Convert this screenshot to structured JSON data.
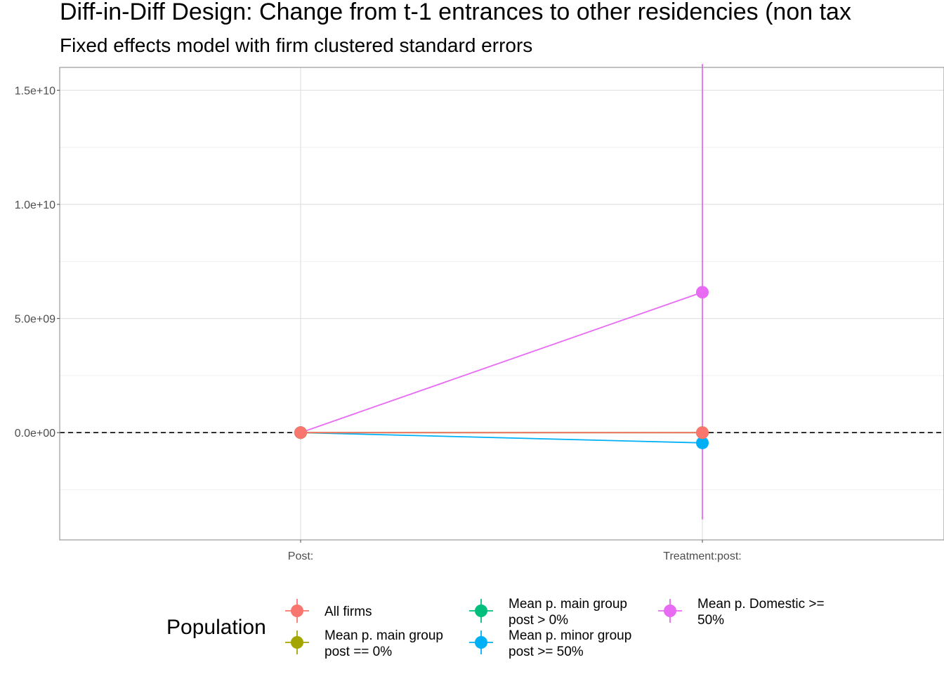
{
  "chart_data": {
    "type": "scatter",
    "title": "Diff-in-Diff Design: Change from t-1 entrances to other residencies (non tax",
    "subtitle": "Fixed effects model with firm clustered standard errors",
    "xlabel": "",
    "ylabel": "",
    "categories": [
      "Post:",
      "Treatment:post:"
    ],
    "ylim": [
      -4700000000.0,
      16000000000.0
    ],
    "yticks": [
      0,
      5000000000,
      10000000000,
      15000000000
    ],
    "ytick_labels": [
      "0.0e+00",
      "5.0e+09",
      "1.0e+10",
      "1.5e+10"
    ],
    "grid": true,
    "reference_line": 0,
    "legend_title": "Population",
    "legend_position": "bottom",
    "series": [
      {
        "name": "All firms",
        "color": "#F8766D",
        "values": [
          0,
          0
        ],
        "lower": [
          0,
          0
        ],
        "upper": [
          0,
          0
        ]
      },
      {
        "name": "Mean p. main group post == 0%",
        "label_lines": [
          "Mean p. main group",
          "post == 0%"
        ],
        "color": "#A3A500",
        "values": [
          0,
          0
        ],
        "lower": [
          0,
          0
        ],
        "upper": [
          0,
          0
        ]
      },
      {
        "name": "Mean p. main group post > 0%",
        "label_lines": [
          "Mean p. main group",
          "post > 0%"
        ],
        "color": "#00BF7D",
        "values": [
          0,
          0
        ],
        "lower": [
          0,
          0
        ],
        "upper": [
          0,
          0
        ]
      },
      {
        "name": "Mean p. minor group post >= 50%",
        "label_lines": [
          "Mean p. minor group",
          "post >= 50%"
        ],
        "color": "#00B0F6",
        "values": [
          0,
          -450000000
        ],
        "lower": [
          0,
          -450000000
        ],
        "upper": [
          0,
          -450000000
        ]
      },
      {
        "name": "Mean p. Domestic >= 50%",
        "label_lines": [
          "Mean p. Domestic >=",
          "50%"
        ],
        "color": "#E76BF3",
        "values": [
          0,
          6150000000
        ],
        "lower": [
          0,
          -3800000000
        ],
        "upper": [
          0,
          16150000000
        ]
      }
    ]
  }
}
